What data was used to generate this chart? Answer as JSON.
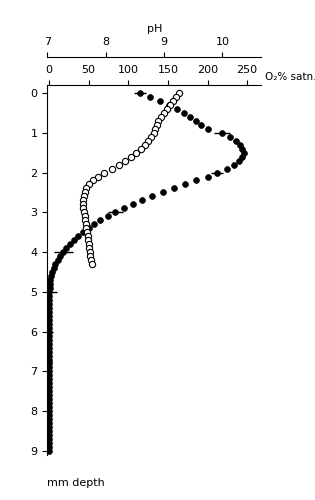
{
  "ph_label": "pH",
  "o2_label": "O₂% satn.",
  "ylabel": "mm depth",
  "ph_xlim": [
    7,
    10.667
  ],
  "ph_xticks": [
    7,
    8,
    9,
    10
  ],
  "o2_xlim": [
    -2,
    268
  ],
  "o2_xticks": [
    0,
    50,
    100,
    150,
    200,
    250
  ],
  "ylim": [
    9.1,
    -0.2
  ],
  "yticks": [
    0,
    1,
    2,
    3,
    4,
    5,
    6,
    7,
    8,
    9
  ],
  "o2_data": [
    [
      0.0,
      115
    ],
    [
      0.1,
      128
    ],
    [
      0.2,
      140
    ],
    [
      0.3,
      152
    ],
    [
      0.4,
      162
    ],
    [
      0.5,
      170
    ],
    [
      0.6,
      178
    ],
    [
      0.7,
      185
    ],
    [
      0.8,
      192
    ],
    [
      0.9,
      200
    ],
    [
      1.0,
      218
    ],
    [
      1.1,
      228
    ],
    [
      1.2,
      236
    ],
    [
      1.3,
      241
    ],
    [
      1.4,
      244
    ],
    [
      1.5,
      246
    ],
    [
      1.6,
      244
    ],
    [
      1.7,
      240
    ],
    [
      1.8,
      233
    ],
    [
      1.9,
      224
    ],
    [
      2.0,
      212
    ],
    [
      2.1,
      200
    ],
    [
      2.2,
      186
    ],
    [
      2.3,
      172
    ],
    [
      2.4,
      158
    ],
    [
      2.5,
      144
    ],
    [
      2.6,
      130
    ],
    [
      2.7,
      118
    ],
    [
      2.8,
      106
    ],
    [
      2.9,
      95
    ],
    [
      3.0,
      84
    ],
    [
      3.1,
      74
    ],
    [
      3.2,
      65
    ],
    [
      3.3,
      57
    ],
    [
      3.4,
      50
    ],
    [
      3.5,
      43
    ],
    [
      3.6,
      37
    ],
    [
      3.7,
      32
    ],
    [
      3.8,
      27
    ],
    [
      3.9,
      22
    ],
    [
      4.0,
      18
    ],
    [
      4.1,
      14
    ],
    [
      4.2,
      11
    ],
    [
      4.3,
      8
    ],
    [
      4.4,
      6
    ],
    [
      4.5,
      4
    ],
    [
      4.6,
      3
    ],
    [
      4.7,
      2
    ],
    [
      4.8,
      1
    ],
    [
      4.9,
      1
    ],
    [
      5.0,
      0
    ],
    [
      5.1,
      0
    ],
    [
      5.2,
      0
    ],
    [
      5.3,
      0
    ],
    [
      5.4,
      0
    ],
    [
      5.5,
      0
    ],
    [
      5.6,
      0
    ],
    [
      5.7,
      0
    ],
    [
      5.8,
      0
    ],
    [
      5.9,
      0
    ],
    [
      6.0,
      0
    ],
    [
      6.1,
      0
    ],
    [
      6.2,
      0
    ],
    [
      6.3,
      0
    ],
    [
      6.4,
      0
    ],
    [
      6.5,
      0
    ],
    [
      6.6,
      0
    ],
    [
      6.7,
      0
    ],
    [
      6.8,
      0
    ],
    [
      6.9,
      0
    ],
    [
      7.0,
      0
    ],
    [
      7.1,
      0
    ],
    [
      7.2,
      0
    ],
    [
      7.3,
      0
    ],
    [
      7.4,
      0
    ],
    [
      7.5,
      0
    ],
    [
      7.6,
      0
    ],
    [
      7.7,
      0
    ],
    [
      7.8,
      0
    ],
    [
      7.9,
      0
    ],
    [
      8.0,
      0
    ],
    [
      8.1,
      0
    ],
    [
      8.2,
      0
    ],
    [
      8.3,
      0
    ],
    [
      8.4,
      0
    ],
    [
      8.5,
      0
    ],
    [
      8.6,
      0
    ],
    [
      8.7,
      0
    ],
    [
      8.8,
      0
    ],
    [
      8.9,
      0
    ],
    [
      9.0,
      0
    ]
  ],
  "o2_errors": [
    [
      0.0,
      115,
      8
    ],
    [
      1.0,
      218,
      10
    ],
    [
      2.0,
      212,
      8
    ],
    [
      3.0,
      84,
      10
    ],
    [
      4.0,
      18,
      12
    ],
    [
      5.0,
      0,
      10
    ],
    [
      6.0,
      0,
      5
    ],
    [
      7.0,
      0,
      3
    ],
    [
      8.0,
      0,
      2
    ]
  ],
  "ph_data": [
    [
      0.0,
      9.25
    ],
    [
      0.1,
      9.2
    ],
    [
      0.2,
      9.15
    ],
    [
      0.3,
      9.1
    ],
    [
      0.4,
      9.05
    ],
    [
      0.5,
      9.0
    ],
    [
      0.6,
      8.95
    ],
    [
      0.7,
      8.9
    ],
    [
      0.8,
      8.88
    ],
    [
      0.9,
      8.85
    ],
    [
      1.0,
      8.82
    ],
    [
      1.1,
      8.78
    ],
    [
      1.2,
      8.73
    ],
    [
      1.3,
      8.67
    ],
    [
      1.4,
      8.6
    ],
    [
      1.5,
      8.52
    ],
    [
      1.6,
      8.43
    ],
    [
      1.7,
      8.33
    ],
    [
      1.8,
      8.22
    ],
    [
      1.9,
      8.1
    ],
    [
      2.0,
      7.98
    ],
    [
      2.1,
      7.87
    ],
    [
      2.2,
      7.78
    ],
    [
      2.3,
      7.72
    ],
    [
      2.4,
      7.67
    ],
    [
      2.5,
      7.65
    ],
    [
      2.6,
      7.63
    ],
    [
      2.7,
      7.62
    ],
    [
      2.8,
      7.62
    ],
    [
      2.9,
      7.62
    ],
    [
      3.0,
      7.63
    ],
    [
      3.1,
      7.64
    ],
    [
      3.2,
      7.65
    ],
    [
      3.3,
      7.66
    ],
    [
      3.4,
      7.67
    ],
    [
      3.5,
      7.68
    ],
    [
      3.6,
      7.69
    ],
    [
      3.7,
      7.7
    ],
    [
      3.8,
      7.71
    ],
    [
      3.9,
      7.72
    ],
    [
      4.0,
      7.73
    ],
    [
      4.1,
      7.74
    ],
    [
      4.2,
      7.75
    ],
    [
      4.3,
      7.76
    ]
  ]
}
